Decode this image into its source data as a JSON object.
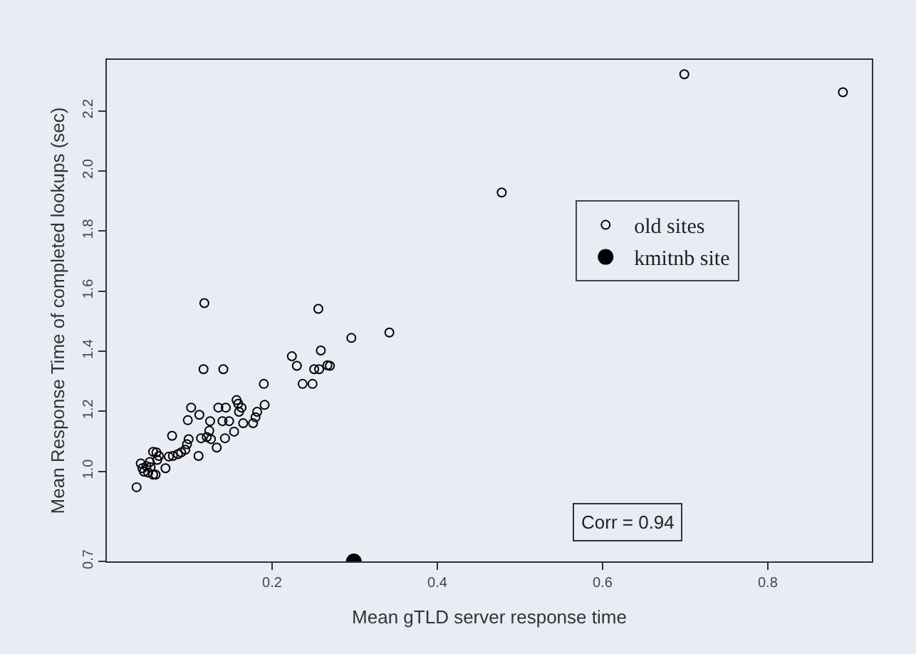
{
  "chart_data": {
    "type": "scatter",
    "xlabel": "Mean gTLD server response time",
    "ylabel": "Mean Response Time of completed lookups (sec)",
    "xlim": [
      0,
      0.926
    ],
    "xticks": [
      0.2,
      0.4,
      0.6,
      0.8
    ],
    "ylim": [
      0.7,
      2.37
    ],
    "yticks": [
      0.7,
      {
        "value": 1,
        "label": "1.0"
      },
      1.2,
      1.4,
      1.6,
      1.8,
      {
        "value": 2,
        "label": "2.0"
      },
      2.2
    ],
    "grid": false,
    "legend": "top right",
    "marker": "circle",
    "annotations": [
      "Corr = 0.94"
    ],
    "series": [
      {
        "name": "old sites",
        "color": "#000000",
        "x": [
          0.036,
          0.041,
          0.043,
          0.045,
          0.048,
          0.05,
          0.052,
          0.053,
          0.056,
          0.059,
          0.056,
          0.06,
          0.061,
          0.063,
          0.071,
          0.075,
          0.079,
          0.08,
          0.086,
          0.09,
          0.095,
          0.097,
          0.098,
          0.099,
          0.102,
          0.111,
          0.112,
          0.114,
          0.118,
          0.117,
          0.121,
          0.124,
          0.125,
          0.126,
          0.133,
          0.135,
          0.14,
          0.141,
          0.143,
          0.144,
          0.148,
          0.154,
          0.157,
          0.159,
          0.16,
          0.163,
          0.165,
          0.177,
          0.18,
          0.182,
          0.19,
          0.191,
          0.224,
          0.23,
          0.237,
          0.249,
          0.251,
          0.256,
          0.259,
          0.257,
          0.267,
          0.27,
          0.296,
          0.342,
          0.478,
          0.699,
          0.891
        ],
        "values": [
          0.947,
          1.026,
          1.01,
          0.999,
          1.017,
          0.996,
          1.031,
          1.014,
          0.989,
          0.989,
          1.065,
          1.063,
          1.038,
          1.051,
          1.01,
          1.049,
          1.118,
          1.051,
          1.057,
          1.063,
          1.072,
          1.09,
          1.17,
          1.107,
          1.212,
          1.051,
          1.188,
          1.11,
          1.56,
          1.34,
          1.114,
          1.135,
          1.167,
          1.107,
          1.079,
          1.212,
          1.167,
          1.34,
          1.11,
          1.212,
          1.167,
          1.132,
          1.237,
          1.225,
          1.198,
          1.212,
          1.16,
          1.16,
          1.18,
          1.198,
          1.291,
          1.221,
          1.383,
          1.351,
          1.291,
          1.291,
          1.34,
          1.541,
          1.402,
          1.34,
          1.353,
          1.351,
          1.444,
          1.462,
          1.928,
          2.322,
          2.262
        ]
      },
      {
        "name": "kmitnb site",
        "color": "#000000",
        "x": [
          0.299
        ],
        "values": [
          0.7
        ]
      }
    ]
  }
}
